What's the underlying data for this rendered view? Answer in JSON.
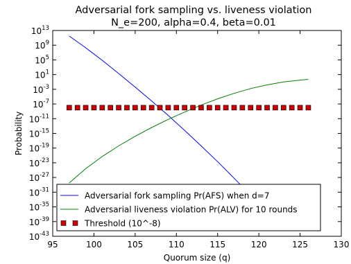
{
  "chart_data": {
    "type": "line",
    "title": "Adversarial fork sampling vs. liveness violation",
    "subtitle": "N_e=200, alpha=0.4, beta=0.01",
    "xlabel": "Quorum size (q)",
    "ylabel": "Probability",
    "xlim": [
      95,
      130
    ],
    "ylim_log10": [
      -43,
      13
    ],
    "y_scale": "log",
    "x_ticks": [
      "95",
      "100",
      "105",
      "110",
      "115",
      "120",
      "125",
      "130"
    ],
    "y_tick_base": "10",
    "y_tick_exponents": [
      "13",
      "9",
      "5",
      "1",
      "-3",
      "-7",
      "-11",
      "-15",
      "-19",
      "-23",
      "-27",
      "-31",
      "-35",
      "-39",
      "-43"
    ],
    "grid": false,
    "legend_position": "lower-center",
    "series": [
      {
        "name": "Adversarial fork sampling Pr(AFS) when d=7",
        "color": "#0000ff",
        "marker": "none",
        "x": [
          97,
          99,
          101,
          103,
          105,
          107,
          109,
          111,
          113,
          115,
          117,
          119,
          121,
          122.5
        ],
        "log10_y": [
          11.5,
          8.3,
          4.9,
          1.3,
          -2.4,
          -6.2,
          -10.1,
          -14.2,
          -18.4,
          -22.7,
          -27.2,
          -31.8,
          -36.5,
          -40.2
        ]
      },
      {
        "name": "Adversarial liveness violation Pr(ALV) for 10 rounds",
        "color": "#008000",
        "marker": "none",
        "x": [
          97,
          99,
          101,
          103,
          105,
          107,
          109,
          111,
          113,
          115,
          117,
          119,
          121,
          123,
          125,
          126
        ],
        "log10_y": [
          -28.5,
          -24.6,
          -21.3,
          -18.4,
          -15.8,
          -13.4,
          -11.2,
          -9.2,
          -7.3,
          -5.6,
          -4.1,
          -2.8,
          -1.8,
          -1.0,
          -0.5,
          -0.3
        ]
      },
      {
        "name": "Threshold (10^-8)",
        "color": "#cc0000",
        "marker": "square",
        "x": [
          97,
          98,
          99,
          100,
          101,
          102,
          103,
          104,
          105,
          106,
          107,
          108,
          109,
          110,
          111,
          112,
          113,
          114,
          115,
          116,
          117,
          118,
          119,
          120,
          121,
          122,
          123,
          124,
          125,
          126
        ],
        "log10_y": [
          -8,
          -8,
          -8,
          -8,
          -8,
          -8,
          -8,
          -8,
          -8,
          -8,
          -8,
          -8,
          -8,
          -8,
          -8,
          -8,
          -8,
          -8,
          -8,
          -8,
          -8,
          -8,
          -8,
          -8,
          -8,
          -8,
          -8,
          -8,
          -8,
          -8
        ]
      }
    ]
  }
}
